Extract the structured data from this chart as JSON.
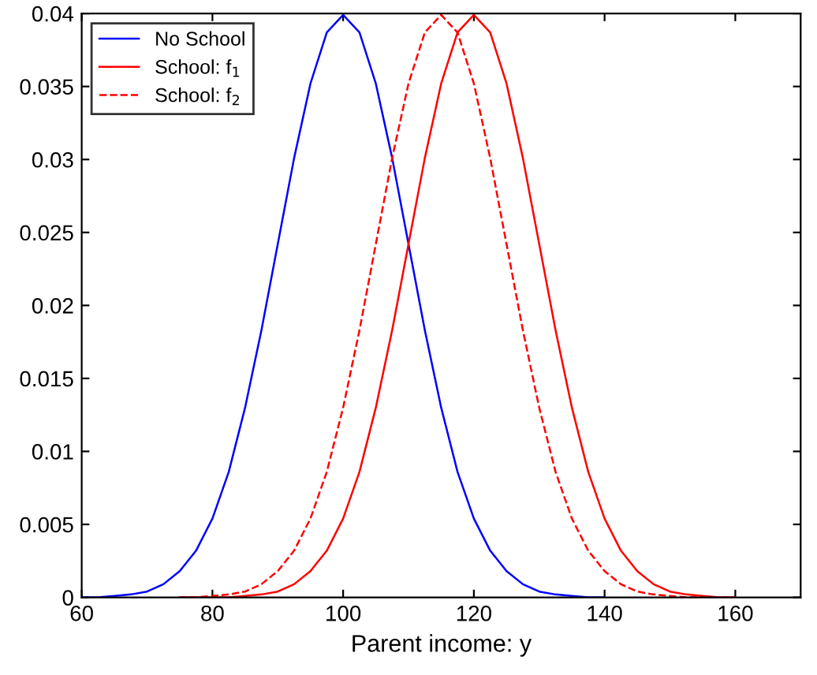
{
  "chart_data": {
    "type": "line",
    "xlabel": "Parent income: y",
    "x": [
      60,
      62.5,
      65,
      67.5,
      70,
      72.5,
      75,
      77.5,
      80,
      82.5,
      85,
      87.5,
      90,
      92.5,
      95,
      97.5,
      100,
      102.5,
      105,
      107.5,
      110,
      112.5,
      115,
      117.5,
      120,
      122.5,
      125,
      127.5,
      130,
      132.5,
      135,
      137.5,
      140,
      142.5,
      145,
      147.5,
      150,
      152.5,
      155,
      157.5,
      160
    ],
    "series": [
      {
        "name": "No School",
        "color": "#0000ff",
        "line_style": "solid",
        "values": [
          0,
          0,
          0.0001,
          0.0002,
          0.0004,
          0.0009,
          0.0018,
          0.0032,
          0.0054,
          0.0086,
          0.013,
          0.0183,
          0.0242,
          0.0301,
          0.0352,
          0.0387,
          0.0399,
          0.0387,
          0.0352,
          0.0301,
          0.0242,
          0.0183,
          0.013,
          0.0086,
          0.0054,
          0.0032,
          0.0018,
          0.0009,
          0.0004,
          0.0002,
          0.0001,
          0,
          0,
          null,
          null,
          null,
          null,
          null,
          null,
          null,
          null
        ]
      },
      {
        "name": "School: f$_{1}$",
        "color": "#ff0000",
        "line_style": "solid",
        "values": [
          null,
          null,
          null,
          null,
          null,
          null,
          0,
          0,
          0,
          0,
          0.0001,
          0.0002,
          0.0004,
          0.0009,
          0.0018,
          0.0032,
          0.0054,
          0.0086,
          0.013,
          0.0183,
          0.0242,
          0.0301,
          0.0352,
          0.0387,
          0.0399,
          0.0387,
          0.0352,
          0.0301,
          0.0242,
          0.0183,
          0.013,
          0.0086,
          0.0054,
          0.0032,
          0.0018,
          0.0009,
          0.0004,
          0.0002,
          0.0001,
          0,
          0
        ]
      },
      {
        "name": "School: f$_{2}$",
        "color": "#ff0000",
        "line_style": "dashed",
        "values": [
          null,
          null,
          null,
          null,
          null,
          null,
          0,
          0,
          0.0001,
          0.0002,
          0.0004,
          0.0009,
          0.0018,
          0.0032,
          0.0054,
          0.0086,
          0.013,
          0.0183,
          0.0242,
          0.0301,
          0.0352,
          0.0387,
          0.0399,
          0.0387,
          0.0352,
          0.0301,
          0.0242,
          0.0183,
          0.013,
          0.0086,
          0.0054,
          0.0032,
          0.0018,
          0.0009,
          0.0004,
          0.0002,
          0.0001,
          0,
          0,
          0,
          0
        ]
      }
    ],
    "xlim": [
      60,
      170
    ],
    "xticks": [
      60,
      80,
      100,
      120,
      140,
      160
    ],
    "ylim": [
      0,
      0.04
    ],
    "yticks": [
      0,
      0.005,
      0.01,
      0.015,
      0.02,
      0.025,
      0.03,
      0.035,
      0.04
    ],
    "legend": "top left",
    "grid": false
  }
}
